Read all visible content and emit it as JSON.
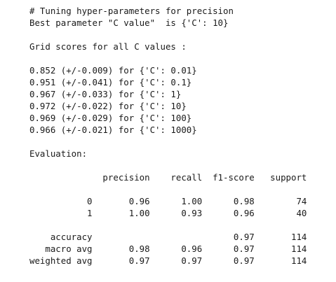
{
  "output": {
    "lines": [
      "# Tuning hyper-parameters for precision",
      "Best parameter \"C value\"  is {'C': 10}",
      "",
      "Grid scores for all C values :",
      "",
      "0.852 (+/-0.009) for {'C': 0.01}",
      "0.951 (+/-0.041) for {'C': 0.1}",
      "0.967 (+/-0.033) for {'C': 1}",
      "0.972 (+/-0.022) for {'C': 10}",
      "0.969 (+/-0.029) for {'C': 100}",
      "0.966 (+/-0.021) for {'C': 1000}",
      "",
      "Evaluation:",
      "",
      "              precision    recall  f1-score   support",
      "",
      "           0       0.96      1.00      0.98        74",
      "           1       1.00      0.93      0.96        40",
      "",
      "    accuracy                           0.97       114",
      "   macro avg       0.98      0.96      0.97       114",
      "weighted avg       0.97      0.97      0.97       114"
    ]
  }
}
